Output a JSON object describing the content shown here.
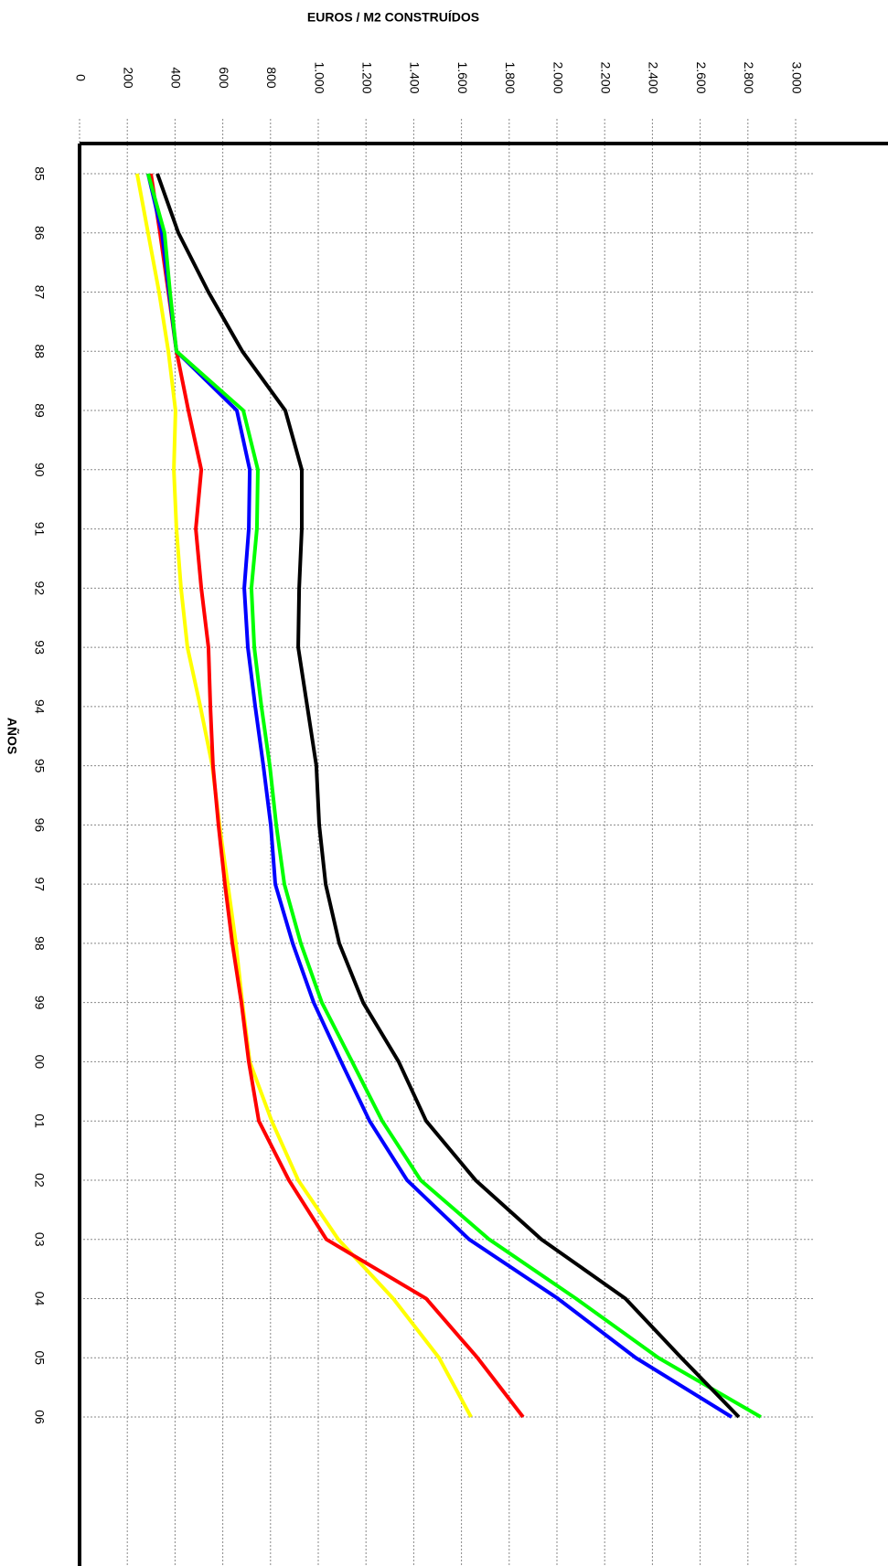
{
  "chart_data": {
    "type": "line",
    "title": "EUROS / M2 CONSTRUÍDOS",
    "x_label": "AÑOS",
    "categories": [
      "85",
      "86",
      "87",
      "88",
      "89",
      "90",
      "91",
      "92",
      "93",
      "94",
      "95",
      "96",
      "97",
      "98",
      "99",
      "00",
      "01",
      "02",
      "03",
      "04",
      "05",
      "06"
    ],
    "ylim": [
      0,
      3000
    ],
    "yticks": [
      0,
      200,
      400,
      600,
      800,
      {
        "value": 1000,
        "label": "1.000"
      },
      {
        "value": 1200,
        "label": "1.200"
      },
      {
        "value": 1400,
        "label": "1.400"
      },
      {
        "value": 1600,
        "label": "1.600"
      },
      {
        "value": 1800,
        "label": "1.800"
      },
      {
        "value": 2000,
        "label": "2.000"
      },
      {
        "value": 2200,
        "label": "2.200"
      },
      {
        "value": 2400,
        "label": "2.400"
      },
      {
        "value": 2600,
        "label": "2.600"
      },
      {
        "value": 2800,
        "label": "2.800"
      },
      {
        "value": 3000,
        "label": "3.000"
      }
    ],
    "grid": true,
    "series": [
      {
        "color": "#ffff00",
        "values": [
          241,
          287,
          333,
          372,
          402,
          395,
          406,
          425,
          452,
          506,
          556,
          586,
          621,
          655,
          682,
          713,
          805,
          916,
          1084,
          1314,
          1506,
          1640
        ]
      },
      {
        "color": "#ff0000",
        "values": [
          299,
          337,
          372,
          406,
          456,
          510,
          487,
          510,
          540,
          548,
          559,
          582,
          609,
          640,
          678,
          709,
          751,
          877,
          1034,
          1452,
          1667,
          1858
        ]
      },
      {
        "color": "#0000ff",
        "values": [
          287,
          345,
          375,
          406,
          659,
          713,
          709,
          690,
          705,
          736,
          770,
          801,
          820,
          893,
          981,
          1096,
          1215,
          1372,
          1632,
          2004,
          2330,
          2732
        ]
      },
      {
        "color": "#00ff00",
        "values": [
          287,
          356,
          379,
          406,
          686,
          747,
          743,
          720,
          732,
          762,
          797,
          824,
          858,
          927,
          1015,
          1142,
          1268,
          1429,
          1716,
          2080,
          2425,
          2854
        ]
      },
      {
        "color": "#000000",
        "values": [
          326,
          414,
          540,
          682,
          862,
          931,
          931,
          920,
          916,
          954,
          992,
          1004,
          1031,
          1088,
          1188,
          1337,
          1452,
          1659,
          1935,
          2287,
          2521,
          2762
        ]
      }
    ]
  }
}
